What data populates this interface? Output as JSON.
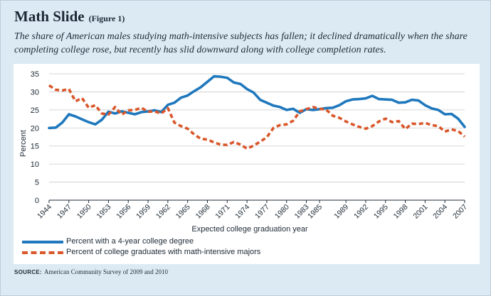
{
  "header": {
    "title": "Math Slide",
    "figure_label": "(Figure 1)",
    "subtitle": "The share of American males studying math-intensive subjects has fallen; it declined  dramatically when the share completing college rose, but recently has slid downward along with college completion rates."
  },
  "source": {
    "label": "SOURCE:",
    "text": "American Community Survey of 2009 and 2010"
  },
  "colors": {
    "blue": "#1f78bd",
    "orange": "#d9572a",
    "frame_bg": "#dcebf3"
  },
  "chart_data": {
    "type": "line",
    "xlabel": "Expected college graduation year",
    "ylabel": "Percent",
    "ylim": [
      0,
      35
    ],
    "yticks": [
      0,
      5,
      10,
      15,
      20,
      25,
      30,
      35
    ],
    "xlim": [
      1944,
      2007
    ],
    "xticks": [
      "1944",
      "1947",
      "1950",
      "1953",
      "1956",
      "1959",
      "1962",
      "1965",
      "1968",
      "1971",
      "1974",
      "1977",
      "1980",
      "1983",
      "1985",
      "1989",
      "1992",
      "1995",
      "1998",
      "2001",
      "2004",
      "2007"
    ],
    "x": [
      1944,
      1945,
      1946,
      1947,
      1948,
      1949,
      1950,
      1951,
      1952,
      1953,
      1954,
      1955,
      1956,
      1957,
      1958,
      1959,
      1960,
      1961,
      1962,
      1963,
      1964,
      1965,
      1966,
      1967,
      1968,
      1969,
      1970,
      1971,
      1972,
      1973,
      1974,
      1975,
      1976,
      1977,
      1978,
      1979,
      1980,
      1981,
      1982,
      1983,
      1984,
      1985,
      1986,
      1987,
      1988,
      1989,
      1990,
      1991,
      1992,
      1993,
      1994,
      1995,
      1996,
      1997,
      1998,
      1999,
      2000,
      2001,
      2002,
      2003,
      2004,
      2005,
      2006,
      2007
    ],
    "series": [
      {
        "name": "Percent with a 4-year college degree",
        "style": "solid",
        "values": [
          20.0,
          20.1,
          21.5,
          23.8,
          23.2,
          22.4,
          21.6,
          21.0,
          22.3,
          24.5,
          24.0,
          24.6,
          24.2,
          23.8,
          24.4,
          24.6,
          24.9,
          24.4,
          26.4,
          27.0,
          28.4,
          29.0,
          30.2,
          31.3,
          32.8,
          34.3,
          34.2,
          33.9,
          32.6,
          32.2,
          30.8,
          29.8,
          27.8,
          27.0,
          26.2,
          25.8,
          25.0,
          25.3,
          24.2,
          25.2,
          25.0,
          25.2,
          25.5,
          25.6,
          26.3,
          27.4,
          27.9,
          28.0,
          28.2,
          28.9,
          28.0,
          27.9,
          27.8,
          27.0,
          27.1,
          27.8,
          27.6,
          26.3,
          25.4,
          25.0,
          23.8,
          23.9,
          22.6,
          20.3
        ]
      },
      {
        "name": "Percent of college graduates with math-intensive majors",
        "style": "dashed",
        "values": [
          31.8,
          30.6,
          30.4,
          30.8,
          27.4,
          28.3,
          25.6,
          26.3,
          24.0,
          23.7,
          25.8,
          23.7,
          24.9,
          25.0,
          25.6,
          24.5,
          24.6,
          24.0,
          25.5,
          21.5,
          20.5,
          19.8,
          18.2,
          17.0,
          16.8,
          16.0,
          15.4,
          15.3,
          16.1,
          15.4,
          14.3,
          15.1,
          16.2,
          17.4,
          20.0,
          20.8,
          21.0,
          22.0,
          24.6,
          25.2,
          25.8,
          25.3,
          25.1,
          23.4,
          22.8,
          21.8,
          21.0,
          20.3,
          19.8,
          20.5,
          21.8,
          22.6,
          21.6,
          21.9,
          19.7,
          21.2,
          21.1,
          21.4,
          20.8,
          20.5,
          19.0,
          19.6,
          19.2,
          17.6
        ]
      }
    ]
  }
}
